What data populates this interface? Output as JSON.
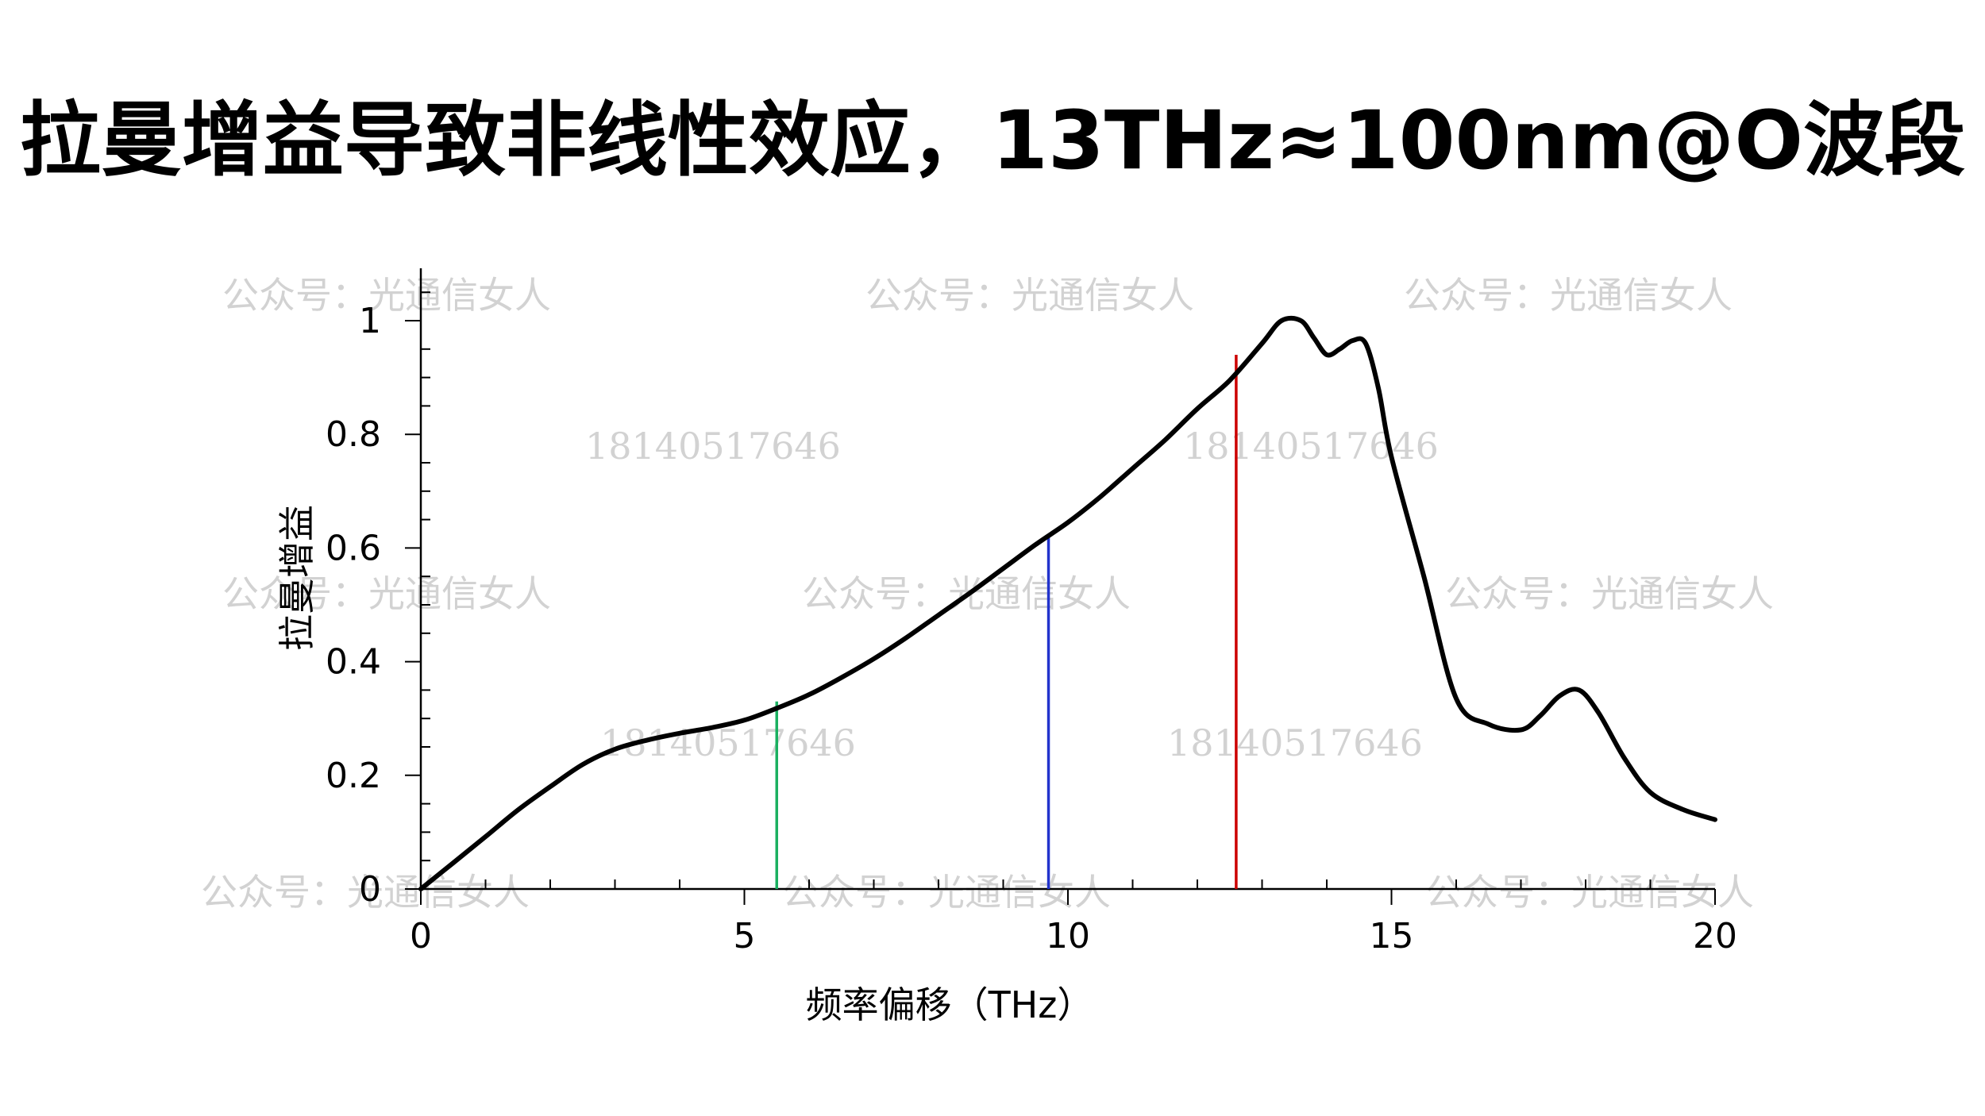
{
  "slide": {
    "title": "拉曼增益导致非线性效应，13THz≈100nm@O波段"
  },
  "watermarks": {
    "account": "公众号：光通信女人",
    "phone": "18140517646"
  },
  "chart_data": {
    "type": "line",
    "title": "",
    "xlabel": "频率偏移（THz）",
    "ylabel": "拉曼增益",
    "xlim": [
      0,
      20
    ],
    "ylim": [
      0,
      1
    ],
    "xticks": [
      0,
      5,
      10,
      15,
      20
    ],
    "xtick_labels": [
      "0",
      "5",
      "10",
      "15",
      "20"
    ],
    "yticks": [
      0,
      0.2,
      0.4,
      0.6,
      0.8,
      1
    ],
    "ytick_labels": [
      "0",
      "0.2",
      "0.4",
      "0.6",
      "0.8",
      "1"
    ],
    "grid": false,
    "series": [
      {
        "color": "#000000",
        "x": [
          0,
          0.5,
          1,
          1.5,
          2,
          2.5,
          3,
          3.5,
          4,
          4.5,
          5,
          5.5,
          6,
          6.5,
          7,
          7.5,
          8,
          8.5,
          9,
          9.5,
          10,
          10.5,
          11,
          11.5,
          12,
          12.5,
          13,
          13.3,
          13.6,
          13.8,
          14.0,
          14.2,
          14.4,
          14.6,
          14.8,
          15,
          15.5,
          16,
          16.5,
          17,
          17.3,
          17.6,
          17.9,
          18.2,
          18.6,
          19,
          19.5,
          20
        ],
        "y": [
          0,
          0.046,
          0.092,
          0.139,
          0.18,
          0.219,
          0.246,
          0.262,
          0.274,
          0.284,
          0.297,
          0.318,
          0.342,
          0.372,
          0.405,
          0.442,
          0.482,
          0.522,
          0.564,
          0.606,
          0.645,
          0.69,
          0.74,
          0.79,
          0.845,
          0.895,
          0.96,
          1.0,
          1.0,
          0.97,
          0.94,
          0.95,
          0.965,
          0.96,
          0.88,
          0.76,
          0.55,
          0.335,
          0.29,
          0.28,
          0.305,
          0.34,
          0.35,
          0.31,
          0.23,
          0.17,
          0.14,
          0.122
        ]
      }
    ],
    "markers": [
      {
        "x": 5.5,
        "y": 0.33,
        "color": "#1ab060"
      },
      {
        "x": 9.7,
        "y": 0.62,
        "color": "#2233cc"
      },
      {
        "x": 12.6,
        "y": 0.94,
        "color": "#cc0000"
      }
    ]
  }
}
